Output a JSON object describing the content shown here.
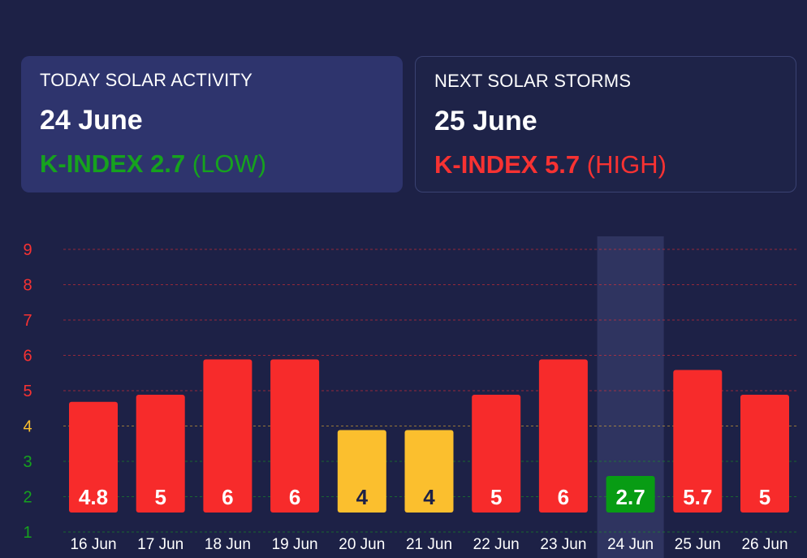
{
  "today_card": {
    "title": "TODAY SOLAR ACTIVITY",
    "date": "24 June",
    "k_label": "K-INDEX 2.7",
    "k_level": "(LOW)",
    "color": "#16a21e"
  },
  "next_card": {
    "title": "NEXT SOLAR STORMS",
    "date": "25 June",
    "k_label": "K-INDEX 5.7",
    "k_level": "(HIGH)",
    "color": "#f73232"
  },
  "chart_data": {
    "type": "bar",
    "categories": [
      "16 Jun",
      "17 Jun",
      "18 Jun",
      "19 Jun",
      "20 Jun",
      "21 Jun",
      "22 Jun",
      "23 Jun",
      "24 Jun",
      "25 Jun",
      "26 Jun"
    ],
    "values": [
      4.8,
      5,
      6,
      6,
      4,
      4,
      5,
      6,
      2.7,
      5.7,
      5
    ],
    "labels": [
      "4.8",
      "5",
      "6",
      "6",
      "4",
      "4",
      "5",
      "6",
      "2.7",
      "5.7",
      "5"
    ],
    "bar_colors": [
      "#f72b2b",
      "#f72b2b",
      "#f72b2b",
      "#f72b2b",
      "#fbbf2e",
      "#fbbf2e",
      "#f72b2b",
      "#f72b2b",
      "#089c14",
      "#f72b2b",
      "#f72b2b"
    ],
    "label_colors": [
      "#ffffff",
      "#ffffff",
      "#ffffff",
      "#ffffff",
      "#1d2146",
      "#1d2146",
      "#ffffff",
      "#ffffff",
      "#ffffff",
      "#ffffff",
      "#ffffff"
    ],
    "highlight_index": 8,
    "yticks": [
      1,
      2,
      3,
      4,
      5,
      6,
      7,
      8,
      9
    ],
    "ytick_colors": [
      "#16a21e",
      "#16a21e",
      "#16a21e",
      "#fbbf2e",
      "#f73232",
      "#f73232",
      "#f73232",
      "#f73232",
      "#f73232"
    ],
    "ylim": [
      1,
      9
    ],
    "grid": true,
    "title": "",
    "xlabel": "",
    "ylabel": ""
  }
}
